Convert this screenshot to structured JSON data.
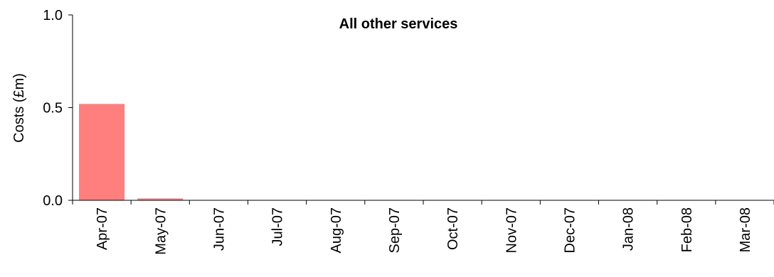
{
  "chart_data": {
    "type": "bar",
    "title": "All other services",
    "xlabel": "",
    "ylabel": "Costs (£m)",
    "categories": [
      "Apr-07",
      "May-07",
      "Jun-07",
      "Jul-07",
      "Aug-07",
      "Sep-07",
      "Oct-07",
      "Nov-07",
      "Dec-07",
      "Jan-08",
      "Feb-08",
      "Mar-08"
    ],
    "values": [
      0.52,
      0.01,
      0,
      0,
      0,
      0,
      0,
      0,
      0,
      0,
      0,
      0
    ],
    "ylim": [
      0,
      1.0
    ],
    "yticks": [
      "0.0",
      "0.5",
      "1.0"
    ],
    "ytick_values": [
      0,
      0.5,
      1.0
    ],
    "bar_color": "#ff7f7f",
    "grid": false,
    "legend": "none"
  }
}
